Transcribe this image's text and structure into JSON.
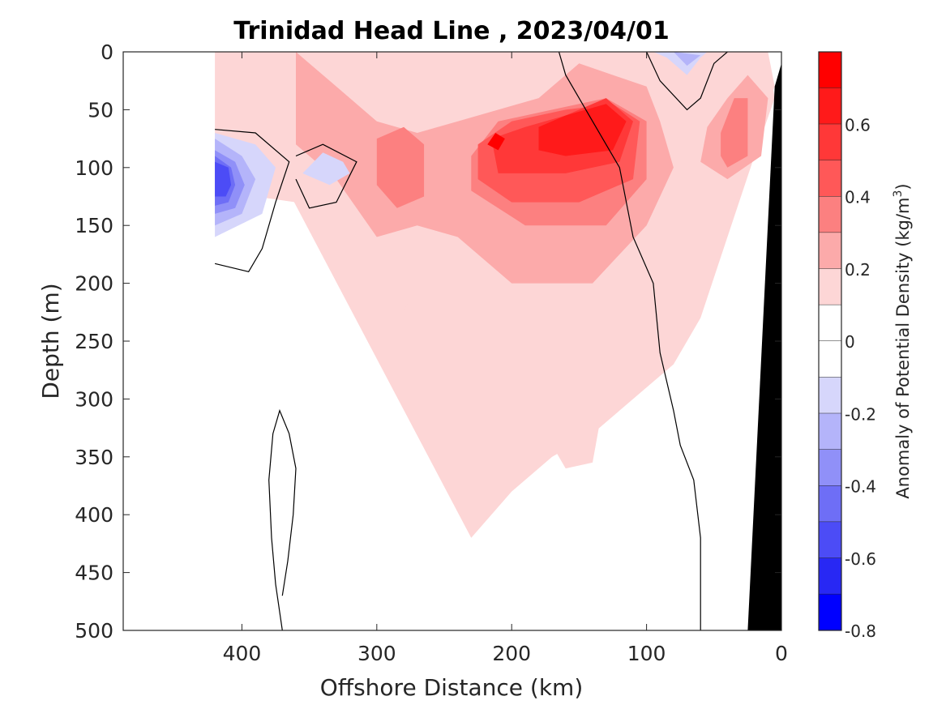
{
  "chart_data": {
    "type": "contour",
    "title": "Trinidad Head Line , 2023/04/01",
    "xlabel": "Offshore Distance (km)",
    "ylabel": "Depth (m)",
    "x_reversed": true,
    "y_reversed": true,
    "xlim": [
      0,
      488
    ],
    "ylim": [
      0,
      500
    ],
    "x_ticks": [
      "400",
      "300",
      "200",
      "100",
      "0"
    ],
    "x_tick_values": [
      400,
      300,
      200,
      100,
      0
    ],
    "y_ticks": [
      "0",
      "50",
      "100",
      "150",
      "200",
      "250",
      "300",
      "350",
      "400",
      "450",
      "500"
    ],
    "y_tick_values": [
      0,
      50,
      100,
      150,
      200,
      250,
      300,
      350,
      400,
      450,
      500
    ],
    "colorbar": {
      "label_main": "Anomaly of Potential Density (kg/m",
      "label_sup": "3",
      "label_close": ")",
      "range": [
        -0.8,
        0.8
      ],
      "tick_labels": [
        "0.6",
        "0.4",
        "0.2",
        "0",
        "-0.2",
        "-0.4",
        "-0.6",
        "-0.8"
      ],
      "tick_values": [
        0.6,
        0.4,
        0.2,
        0,
        -0.2,
        -0.4,
        -0.6,
        -0.8
      ],
      "levels": [
        {
          "from": 0.7,
          "to": 0.8,
          "color": "#ff0000"
        },
        {
          "from": 0.6,
          "to": 0.7,
          "color": "#ff1a1a"
        },
        {
          "from": 0.5,
          "to": 0.6,
          "color": "#ff3838"
        },
        {
          "from": 0.4,
          "to": 0.5,
          "color": "#ff5858"
        },
        {
          "from": 0.3,
          "to": 0.4,
          "color": "#fc8080"
        },
        {
          "from": 0.2,
          "to": 0.3,
          "color": "#fcaaaa"
        },
        {
          "from": 0.1,
          "to": 0.2,
          "color": "#fdd6d6"
        },
        {
          "from": 0.0,
          "to": 0.1,
          "color": "#ffffff"
        },
        {
          "from": -0.1,
          "to": 0.0,
          "color": "#ffffff"
        },
        {
          "from": -0.2,
          "to": -0.1,
          "color": "#d6d6fb"
        },
        {
          "from": -0.3,
          "to": -0.2,
          "color": "#b4b4fa"
        },
        {
          "from": -0.4,
          "to": -0.3,
          "color": "#9090f8"
        },
        {
          "from": -0.5,
          "to": -0.4,
          "color": "#6e6ef6"
        },
        {
          "from": -0.6,
          "to": -0.5,
          "color": "#4c4cf6"
        },
        {
          "from": -0.7,
          "to": -0.6,
          "color": "#2828f4"
        },
        {
          "from": -0.8,
          "to": -0.7,
          "color": "#0000ff"
        }
      ]
    },
    "fields": [
      {
        "name": "nearshore-pink-band",
        "level": 0.15,
        "points": [
          [
            420,
            0
          ],
          [
            300,
            0
          ],
          [
            200,
            0
          ],
          [
            100,
            0
          ],
          [
            60,
            0
          ],
          [
            10,
            5
          ],
          [
            5,
            40
          ],
          [
            20,
            90
          ],
          [
            40,
            160
          ],
          [
            60,
            230
          ],
          [
            80,
            270
          ],
          [
            110,
            300
          ],
          [
            140,
            330
          ],
          [
            170,
            350
          ],
          [
            200,
            380
          ],
          [
            230,
            420
          ]
        ]
      },
      {
        "name": "positive-anomaly-0.15",
        "level": 0.15,
        "points": [
          [
            420,
            0
          ],
          [
            10,
            0
          ],
          [
            5,
            30
          ],
          [
            25,
            90
          ],
          [
            70,
            120
          ],
          [
            100,
            220
          ],
          [
            130,
            290
          ],
          [
            140,
            355
          ],
          [
            160,
            360
          ],
          [
            170,
            340
          ],
          [
            180,
            280
          ],
          [
            220,
            200
          ],
          [
            250,
            170
          ],
          [
            290,
            240
          ],
          [
            320,
            200
          ],
          [
            350,
            140
          ],
          [
            360,
            130
          ],
          [
            420,
            120
          ]
        ]
      },
      {
        "name": "positive-anomaly-0.25",
        "level": 0.25,
        "points": [
          [
            360,
            0
          ],
          [
            330,
            30
          ],
          [
            300,
            60
          ],
          [
            270,
            70
          ],
          [
            240,
            60
          ],
          [
            180,
            40
          ],
          [
            150,
            10
          ],
          [
            100,
            30
          ],
          [
            90,
            60
          ],
          [
            80,
            100
          ],
          [
            100,
            150
          ],
          [
            140,
            200
          ],
          [
            200,
            200
          ],
          [
            240,
            160
          ],
          [
            270,
            150
          ],
          [
            300,
            160
          ],
          [
            330,
            110
          ],
          [
            360,
            80
          ]
        ]
      },
      {
        "name": "positive-anomaly-0.35",
        "level": 0.35,
        "points": [
          [
            230,
            90
          ],
          [
            210,
            60
          ],
          [
            170,
            50
          ],
          [
            130,
            40
          ],
          [
            100,
            60
          ],
          [
            100,
            110
          ],
          [
            130,
            150
          ],
          [
            190,
            150
          ],
          [
            230,
            120
          ]
        ]
      },
      {
        "name": "positive-anomaly-0.45",
        "level": 0.45,
        "points": [
          [
            225,
            80
          ],
          [
            200,
            60
          ],
          [
            160,
            50
          ],
          [
            125,
            45
          ],
          [
            105,
            60
          ],
          [
            110,
            110
          ],
          [
            150,
            130
          ],
          [
            200,
            130
          ],
          [
            225,
            110
          ]
        ]
      },
      {
        "name": "positive-anomaly-0.55",
        "level": 0.55,
        "points": [
          [
            215,
            75
          ],
          [
            190,
            65
          ],
          [
            160,
            55
          ],
          [
            130,
            40
          ],
          [
            110,
            60
          ],
          [
            120,
            95
          ],
          [
            160,
            105
          ],
          [
            210,
            105
          ]
        ]
      },
      {
        "name": "positive-anomaly-0.65",
        "level": 0.65,
        "points": [
          [
            180,
            65
          ],
          [
            160,
            55
          ],
          [
            130,
            45
          ],
          [
            115,
            60
          ],
          [
            125,
            85
          ],
          [
            160,
            90
          ],
          [
            180,
            85
          ]
        ]
      },
      {
        "name": "positive-anomaly-0.75",
        "level": 0.75,
        "points": [
          [
            212,
            70
          ],
          [
            205,
            75
          ],
          [
            210,
            85
          ],
          [
            218,
            80
          ]
        ]
      },
      {
        "name": "offshore-pink-patch-right",
        "level": 0.25,
        "points": [
          [
            55,
            65
          ],
          [
            40,
            40
          ],
          [
            25,
            20
          ],
          [
            10,
            40
          ],
          [
            15,
            90
          ],
          [
            40,
            110
          ],
          [
            60,
            95
          ]
        ]
      },
      {
        "name": "offshore-pink-core-right",
        "level": 0.35,
        "points": [
          [
            45,
            70
          ],
          [
            35,
            40
          ],
          [
            25,
            40
          ],
          [
            25,
            90
          ],
          [
            40,
            100
          ],
          [
            45,
            90
          ]
        ]
      },
      {
        "name": "offshore-pink-patch-mid",
        "level": 0.35,
        "points": [
          [
            300,
            75
          ],
          [
            280,
            65
          ],
          [
            265,
            80
          ],
          [
            265,
            125
          ],
          [
            285,
            135
          ],
          [
            300,
            115
          ]
        ]
      },
      {
        "name": "negative-anomaly-far",
        "level": -0.15,
        "points": [
          [
            420,
            70
          ],
          [
            390,
            80
          ],
          [
            375,
            100
          ],
          [
            385,
            140
          ],
          [
            420,
            160
          ]
        ]
      },
      {
        "name": "negative-anomaly-far-0.25",
        "level": -0.25,
        "points": [
          [
            420,
            75
          ],
          [
            400,
            90
          ],
          [
            390,
            110
          ],
          [
            400,
            140
          ],
          [
            420,
            150
          ]
        ]
      },
      {
        "name": "negative-anomaly-far-0.35",
        "level": -0.35,
        "points": [
          [
            420,
            85
          ],
          [
            405,
            95
          ],
          [
            398,
            115
          ],
          [
            405,
            135
          ],
          [
            420,
            140
          ]
        ]
      },
      {
        "name": "negative-anomaly-far-0.45",
        "level": -0.45,
        "points": [
          [
            420,
            90
          ],
          [
            408,
            100
          ],
          [
            405,
            115
          ],
          [
            410,
            130
          ],
          [
            420,
            133
          ]
        ]
      },
      {
        "name": "negative-anomaly-far-0.55",
        "level": -0.55,
        "points": [
          [
            420,
            95
          ],
          [
            410,
            100
          ],
          [
            408,
            115
          ],
          [
            412,
            125
          ],
          [
            420,
            125
          ]
        ]
      },
      {
        "name": "negative-anomaly-mid",
        "level": -0.15,
        "points": [
          [
            340,
            87
          ],
          [
            325,
            95
          ],
          [
            320,
            105
          ],
          [
            335,
            115
          ],
          [
            355,
            105
          ]
        ]
      },
      {
        "name": "negative-anomaly-near",
        "level": -0.15,
        "points": [
          [
            95,
            0
          ],
          [
            85,
            5
          ],
          [
            70,
            20
          ],
          [
            60,
            5
          ],
          [
            55,
            0
          ]
        ]
      },
      {
        "name": "negative-anomaly-near-0.25",
        "level": -0.25,
        "points": [
          [
            80,
            0
          ],
          [
            70,
            12
          ],
          [
            60,
            3
          ]
        ]
      }
    ],
    "zero_contours": [
      {
        "name": "zero-contour-far",
        "points": [
          [
            420,
            67
          ],
          [
            390,
            70
          ],
          [
            365,
            95
          ],
          [
            375,
            130
          ],
          [
            385,
            170
          ],
          [
            395,
            190
          ],
          [
            420,
            183
          ]
        ]
      },
      {
        "name": "zero-contour-mid",
        "points": [
          [
            360,
            90
          ],
          [
            340,
            80
          ],
          [
            315,
            95
          ],
          [
            330,
            130
          ],
          [
            350,
            135
          ],
          [
            360,
            110
          ]
        ]
      },
      {
        "name": "zero-contour-near-top",
        "points": [
          [
            100,
            0
          ],
          [
            90,
            25
          ],
          [
            70,
            50
          ],
          [
            60,
            40
          ],
          [
            50,
            10
          ],
          [
            40,
            0
          ]
        ]
      },
      {
        "name": "zero-contour-thin-column",
        "points": [
          [
            370,
            500
          ],
          [
            375,
            460
          ],
          [
            378,
            420
          ],
          [
            380,
            370
          ],
          [
            377,
            330
          ],
          [
            372,
            310
          ],
          [
            365,
            330
          ],
          [
            360,
            360
          ],
          [
            362,
            400
          ],
          [
            366,
            440
          ],
          [
            370,
            470
          ]
        ]
      },
      {
        "name": "zero-contour-coastal",
        "points": [
          [
            60,
            500
          ],
          [
            60,
            420
          ],
          [
            65,
            370
          ],
          [
            75,
            340
          ],
          [
            80,
            310
          ],
          [
            90,
            260
          ],
          [
            95,
            200
          ],
          [
            110,
            160
          ],
          [
            120,
            100
          ],
          [
            140,
            60
          ],
          [
            160,
            20
          ],
          [
            165,
            0
          ]
        ]
      }
    ],
    "bathymetry": {
      "name": "seafloor",
      "color": "#000000",
      "points": [
        [
          0,
          10
        ],
        [
          0,
          500
        ],
        [
          25,
          500
        ],
        [
          5,
          30
        ]
      ]
    }
  }
}
